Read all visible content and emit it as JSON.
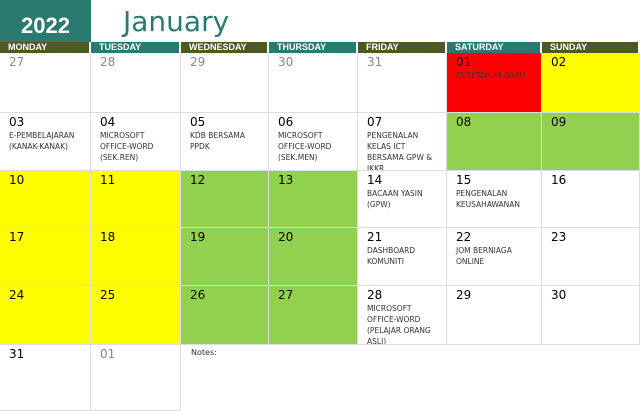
{
  "year": "2022",
  "month": "January",
  "colors": {
    "teal": "#2a7a72",
    "olive": "#4b5a21",
    "holiday": "#ff0000",
    "yellow": "#ffff00",
    "green": "#92d050"
  },
  "days": [
    "MONDAY",
    "TUESDAY",
    "WEDNESDAY",
    "THURSDAY",
    "FRIDAY",
    "SATURDAY",
    "SUNDAY"
  ],
  "cells": [
    {
      "day": "27",
      "muted": true
    },
    {
      "day": "28",
      "muted": true
    },
    {
      "day": "29",
      "muted": true
    },
    {
      "day": "30",
      "muted": true
    },
    {
      "day": "31",
      "muted": true
    },
    {
      "day": "01",
      "event": "CUTI TAHUN BARU",
      "bg": "#ff0000"
    },
    {
      "day": "02",
      "bg": "#ffff00"
    },
    {
      "day": "03",
      "event": "E-PEMBELAJARAN\n(KANAK-KANAK)"
    },
    {
      "day": "04",
      "event": "MICROSOFT\nOFFICE-WORD\n(SEK.REN)"
    },
    {
      "day": "05",
      "event": "KDB BERSAMA\nPPDK"
    },
    {
      "day": "06",
      "event": "MICROSOFT\nOFFICE-WORD\n(SEK.MEN)"
    },
    {
      "day": "07",
      "event": "PENGENALAN\nKELAS ICT\nBERSAMA GPW &\nJKKR"
    },
    {
      "day": "08",
      "bg": "#92d050"
    },
    {
      "day": "09",
      "bg": "#92d050"
    },
    {
      "day": "10",
      "bg": "#ffff00"
    },
    {
      "day": "11",
      "bg": "#ffff00"
    },
    {
      "day": "12",
      "bg": "#92d050"
    },
    {
      "day": "13",
      "bg": "#92d050"
    },
    {
      "day": "14",
      "event": "BACAAN YASIN\n(GPW)"
    },
    {
      "day": "15",
      "event": "PENGENALAN\nKEUSAHAWANAN"
    },
    {
      "day": "16"
    },
    {
      "day": "17",
      "bg": "#ffff00"
    },
    {
      "day": "18",
      "bg": "#ffff00"
    },
    {
      "day": "19",
      "bg": "#92d050"
    },
    {
      "day": "20",
      "bg": "#92d050"
    },
    {
      "day": "21",
      "event": "DASHBOARD\nKOMUNITI"
    },
    {
      "day": "22",
      "event": "JOM BERNIAGA\nONLINE"
    },
    {
      "day": "23"
    },
    {
      "day": "24",
      "bg": "#ffff00"
    },
    {
      "day": "25",
      "bg": "#ffff00"
    },
    {
      "day": "26",
      "bg": "#92d050"
    },
    {
      "day": "27",
      "bg": "#92d050"
    },
    {
      "day": "28",
      "event": "MICROSOFT\nOFFICE-WORD\n(PELAJAR ORANG\nASLI)"
    },
    {
      "day": "29"
    },
    {
      "day": "30"
    },
    {
      "day": "31"
    },
    {
      "day": "01",
      "muted": true
    }
  ],
  "notes_label": "Notes:"
}
